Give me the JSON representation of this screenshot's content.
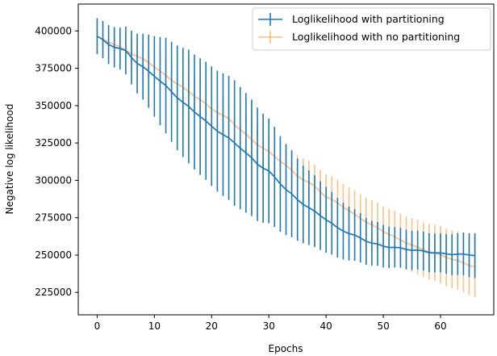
{
  "chart_data": {
    "type": "line",
    "xlabel": "Epochs",
    "ylabel": "Negative log likelihood",
    "xlim": [
      -3.3,
      69.3
    ],
    "ylim": [
      210000,
      418000
    ],
    "x_ticks": [
      0,
      10,
      20,
      30,
      40,
      50,
      60
    ],
    "y_ticks": [
      225000,
      250000,
      275000,
      300000,
      325000,
      350000,
      375000,
      400000
    ],
    "x_tick_labels": [
      "0",
      "10",
      "20",
      "30",
      "40",
      "50",
      "60"
    ],
    "y_tick_labels": [
      "225000",
      "250000",
      "275000",
      "300000",
      "325000",
      "350000",
      "375000",
      "400000"
    ],
    "grid": false,
    "legend_position": "top-right",
    "epochs": [
      0,
      66
    ],
    "series": [
      {
        "name": "Loglikelihood with partitioning",
        "color": "#1f77b4",
        "anchors": [
          [
            0,
            396500
          ],
          [
            2,
            391000
          ],
          [
            5,
            386500
          ],
          [
            7,
            378500
          ],
          [
            10,
            370000
          ],
          [
            12,
            363000
          ],
          [
            15,
            352000
          ],
          [
            18,
            343000
          ],
          [
            20,
            336000
          ],
          [
            23,
            328000
          ],
          [
            25,
            322000
          ],
          [
            28,
            311000
          ],
          [
            30,
            306000
          ],
          [
            33,
            294000
          ],
          [
            35,
            287000
          ],
          [
            38,
            279000
          ],
          [
            40,
            274000
          ],
          [
            42,
            268000
          ],
          [
            45,
            263000
          ],
          [
            48,
            258000
          ],
          [
            50,
            256000
          ],
          [
            53,
            254500
          ],
          [
            56,
            253000
          ],
          [
            60,
            251000
          ],
          [
            63,
            250500
          ],
          [
            66,
            250000
          ]
        ],
        "error_anchors": [
          [
            0,
            12000
          ],
          [
            4,
            14000
          ],
          [
            8,
            22000
          ],
          [
            12,
            32000
          ],
          [
            16,
            38000
          ],
          [
            20,
            40000
          ],
          [
            24,
            42000
          ],
          [
            28,
            38000
          ],
          [
            32,
            32000
          ],
          [
            36,
            26000
          ],
          [
            40,
            22000
          ],
          [
            44,
            18000
          ],
          [
            48,
            15000
          ],
          [
            52,
            13500
          ],
          [
            56,
            13000
          ],
          [
            60,
            13000
          ],
          [
            66,
            15000
          ]
        ]
      },
      {
        "name": "Loglikelihood with no partitioning",
        "color": "#ff7f0e",
        "anchors": [
          [
            0,
            396000
          ],
          [
            3,
            391000
          ],
          [
            6,
            385000
          ],
          [
            9,
            379000
          ],
          [
            12,
            370000
          ],
          [
            15,
            362000
          ],
          [
            18,
            354000
          ],
          [
            20,
            348000
          ],
          [
            23,
            341000
          ],
          [
            25,
            334000
          ],
          [
            28,
            324000
          ],
          [
            30,
            319000
          ],
          [
            33,
            310000
          ],
          [
            35,
            303000
          ],
          [
            38,
            296000
          ],
          [
            40,
            289000
          ],
          [
            42,
            285000
          ],
          [
            45,
            277000
          ],
          [
            48,
            270000
          ],
          [
            50,
            266000
          ],
          [
            53,
            260000
          ],
          [
            56,
            255000
          ],
          [
            60,
            250000
          ],
          [
            63,
            246000
          ],
          [
            66,
            242000
          ]
        ],
        "error_anchors": [
          [
            0,
            11000
          ],
          [
            5,
            10000
          ],
          [
            10,
            11000
          ],
          [
            15,
            12000
          ],
          [
            20,
            12500
          ],
          [
            25,
            13000
          ],
          [
            30,
            14000
          ],
          [
            35,
            14000
          ],
          [
            40,
            15000
          ],
          [
            45,
            16000
          ],
          [
            50,
            17000
          ],
          [
            55,
            18000
          ],
          [
            60,
            19000
          ],
          [
            66,
            20000
          ]
        ]
      }
    ]
  }
}
